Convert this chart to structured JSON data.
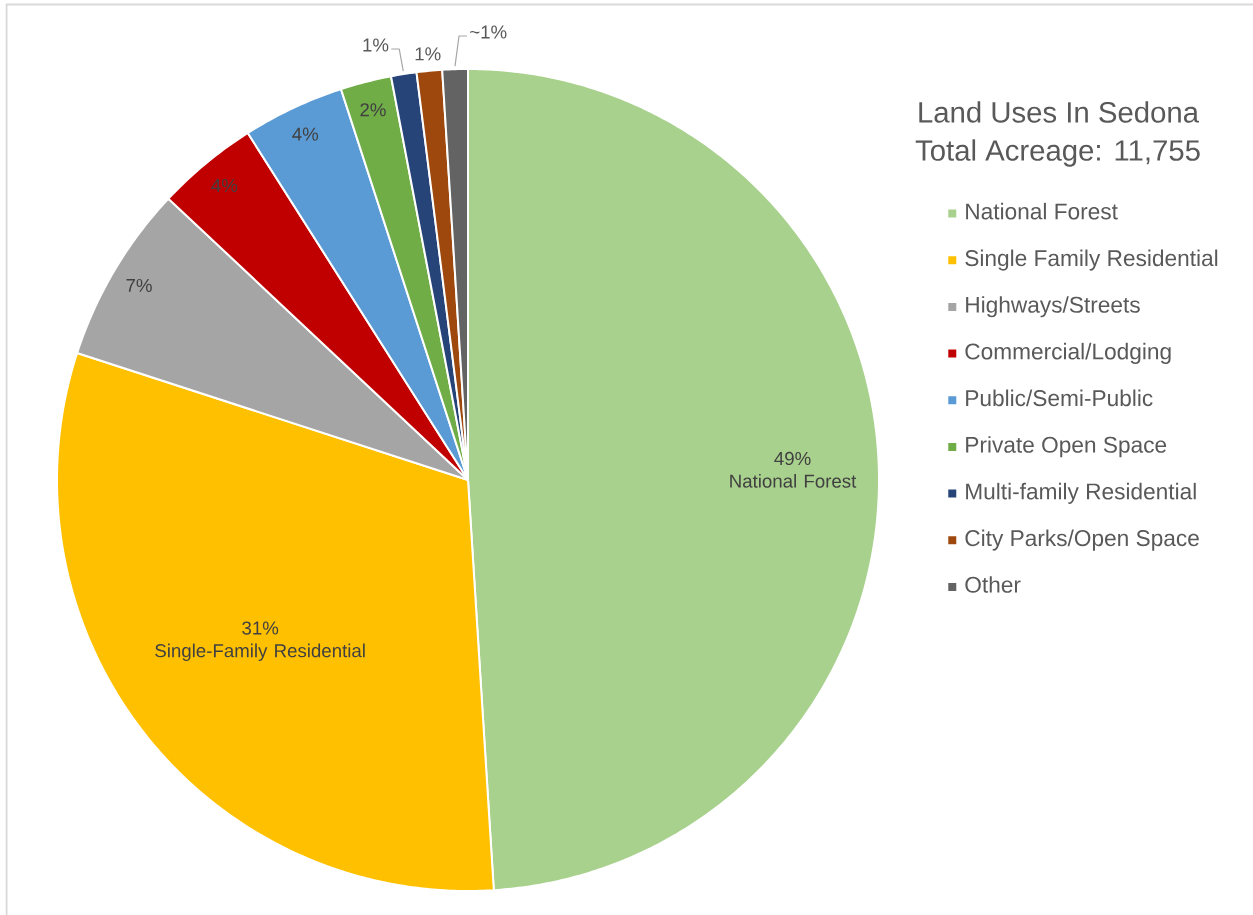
{
  "chart_data": {
    "type": "pie",
    "title": "Land Uses In Sedona",
    "subtitle": "Total Acreage: 11,755",
    "categories": [
      "National Forest",
      "Single Family Residential",
      "Highways/Streets",
      "Commercial/Lodging",
      "Public/Semi-Public",
      "Private Open Space",
      "Multi-family Residential",
      "City Parks/Open Space",
      "Other"
    ],
    "values": [
      49,
      31,
      7,
      4,
      4,
      2,
      1,
      1,
      1
    ],
    "colors": [
      "#a9d18e",
      "#ffc000",
      "#a5a5a5",
      "#c00000",
      "#5b9bd5",
      "#70ad47",
      "#264478",
      "#9e480e",
      "#636363"
    ],
    "value_labels": [
      "49% National Forest",
      "31% Single-Family Residential",
      "7%",
      "4%",
      "4%",
      "2%",
      "1%",
      "1%",
      "~1%"
    ],
    "legend": "right"
  }
}
